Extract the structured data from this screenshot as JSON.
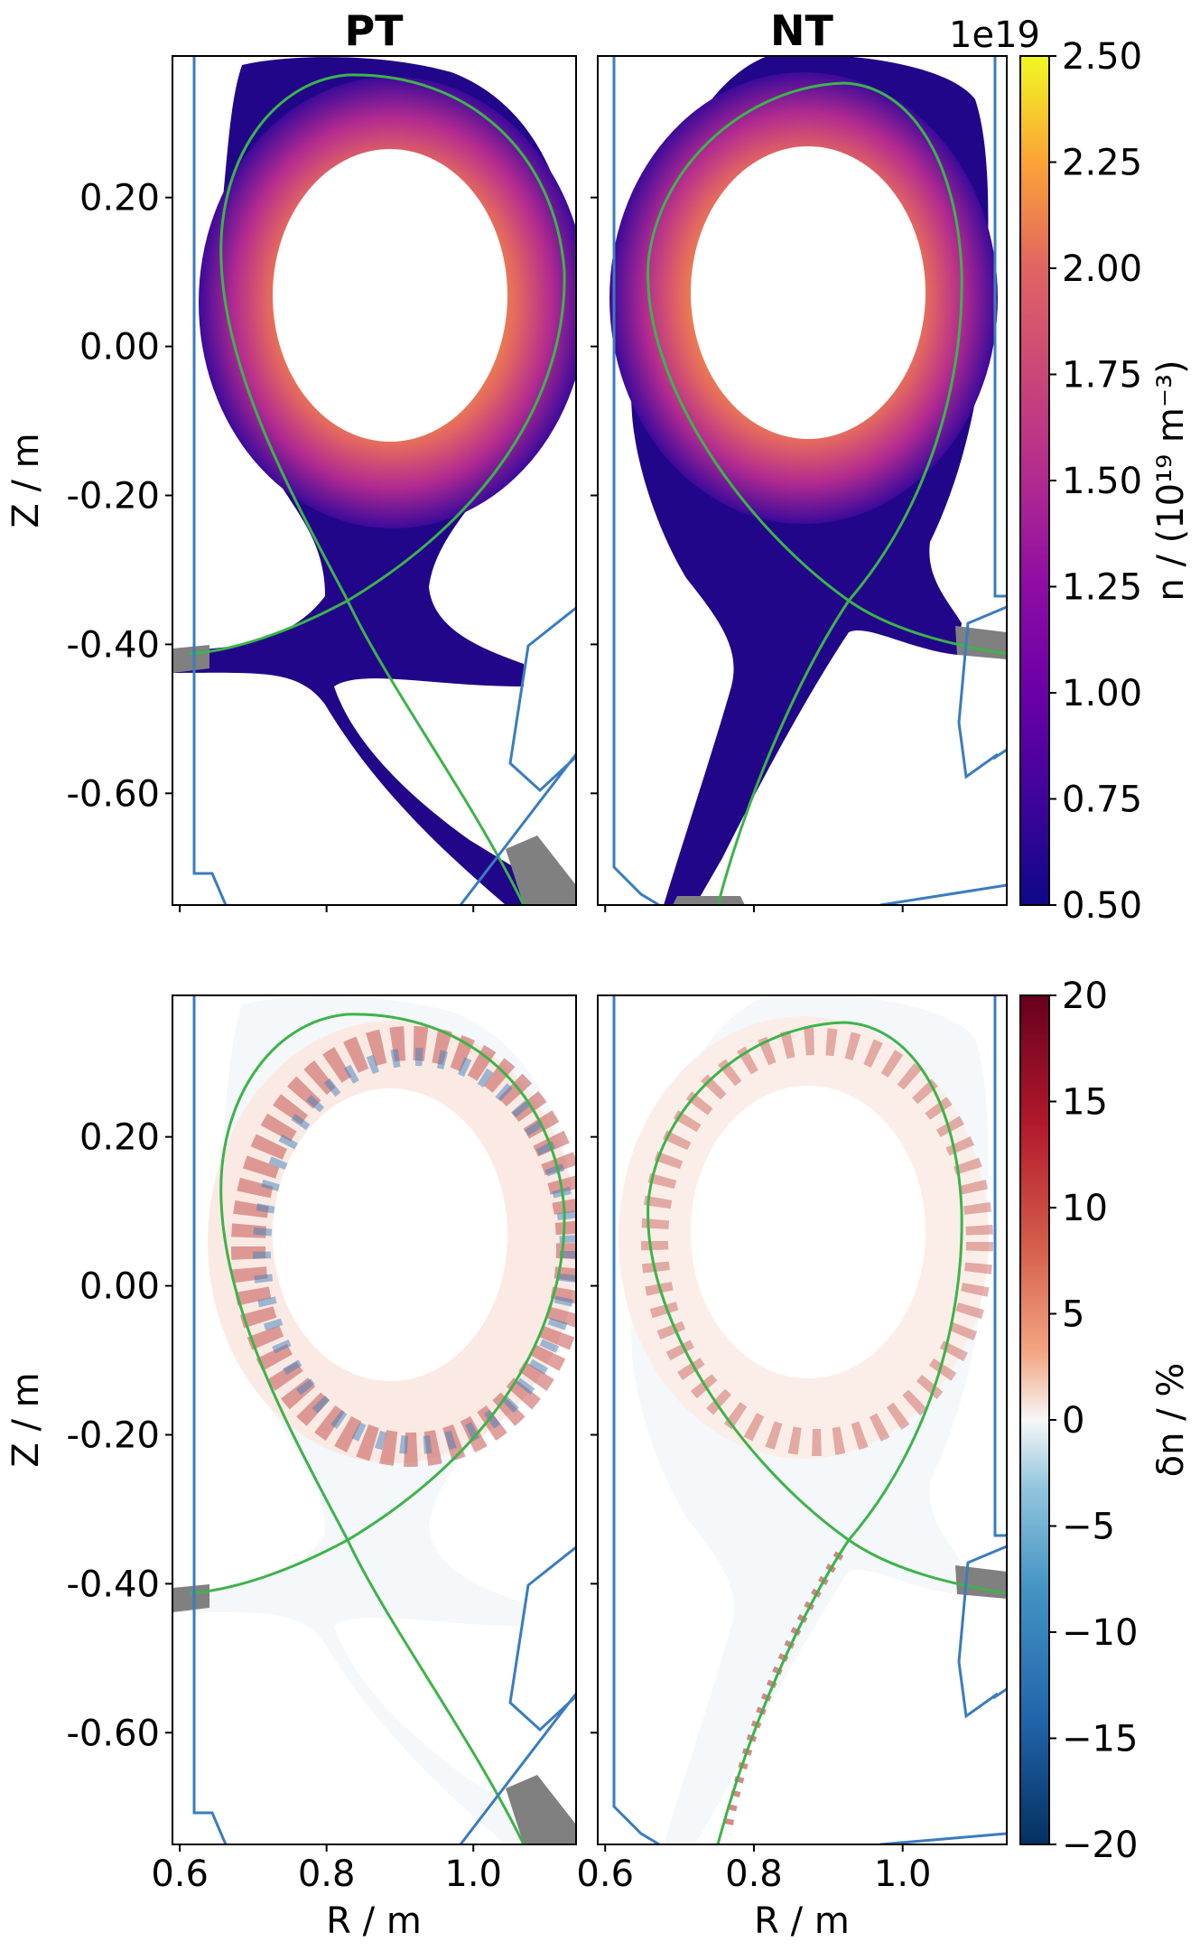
{
  "chart_data": [
    {
      "type": "heatmap",
      "panel": "top-left",
      "title": "PT",
      "ylabel": "Z / m",
      "quantity": "n",
      "y_ticks": [
        "0.20",
        "0.00",
        "-0.20",
        "-0.40",
        "-0.60"
      ],
      "y_tick_values": [
        0.2,
        0.0,
        -0.2,
        -0.4,
        -0.6
      ],
      "xlim": [
        0.59,
        1.14
      ],
      "ylim": [
        -0.75,
        0.39
      ],
      "separatrix_xpoint": {
        "R": 0.83,
        "Z": -0.34
      },
      "core_boundary": {
        "R_center": 0.885,
        "Z_center": 0.05,
        "R_halfwidth": 0.145,
        "Z_halfheight": 0.185
      },
      "lcfs_top": {
        "R": 0.84,
        "Z": 0.365
      }
    },
    {
      "type": "heatmap",
      "panel": "top-right",
      "title": "NT",
      "quantity": "n",
      "xlim": [
        0.59,
        1.14
      ],
      "ylim": [
        -0.75,
        0.39
      ],
      "separatrix_xpoint": {
        "R": 0.93,
        "Z": -0.34
      },
      "core_boundary": {
        "R_center": 0.865,
        "Z_center": 0.05,
        "R_halfwidth": 0.145,
        "Z_halfheight": 0.185
      },
      "lcfs_top": {
        "R": 0.93,
        "Z": 0.355
      }
    },
    {
      "type": "heatmap",
      "panel": "bottom-left",
      "quantity": "δn",
      "xlabel": "R / m",
      "ylabel": "Z / m",
      "x_ticks": [
        "0.6",
        "0.8",
        "1.0"
      ],
      "x_tick_values": [
        0.6,
        0.8,
        1.0
      ],
      "y_ticks": [
        "0.20",
        "0.00",
        "-0.20",
        "-0.40",
        "-0.60"
      ],
      "y_tick_values": [
        0.2,
        0.0,
        -0.2,
        -0.4,
        -0.6
      ],
      "xlim": [
        0.59,
        1.14
      ],
      "ylim": [
        -0.75,
        0.39
      ]
    },
    {
      "type": "heatmap",
      "panel": "bottom-right",
      "quantity": "δn",
      "xlabel": "R / m",
      "x_ticks": [
        "0.6",
        "0.8",
        "1.0"
      ],
      "x_tick_values": [
        0.6,
        0.8,
        1.0
      ],
      "xlim": [
        0.59,
        1.14
      ],
      "ylim": [
        -0.75,
        0.39
      ]
    }
  ],
  "colorbars": {
    "density": {
      "colormap": "plasma",
      "offset_text": "1e19",
      "label": "n / (10¹⁹ m⁻³)",
      "ticks": [
        "2.50",
        "2.25",
        "2.00",
        "1.75",
        "1.50",
        "1.25",
        "1.00",
        "0.75",
        "0.50"
      ],
      "tick_values": [
        2.5,
        2.25,
        2.0,
        1.75,
        1.5,
        1.25,
        1.0,
        0.75,
        0.5
      ],
      "range": [
        0.5,
        2.5
      ]
    },
    "fluctuation": {
      "colormap": "RdBu_r",
      "label": "δn / %",
      "ticks": [
        "20",
        "15",
        "10",
        "5",
        "0",
        "−5",
        "−10",
        "−15",
        "−20"
      ],
      "tick_values": [
        20,
        15,
        10,
        5,
        0,
        -5,
        -10,
        -15,
        -20
      ],
      "range": [
        -20,
        20
      ]
    }
  },
  "colors": {
    "wall": "#3a7cc0",
    "separatrix": "#3db34a",
    "target": "#808080",
    "plasma_low": "#0d0887",
    "plasma_mid": "#9c179e",
    "plasma_high": "#f0f921"
  }
}
